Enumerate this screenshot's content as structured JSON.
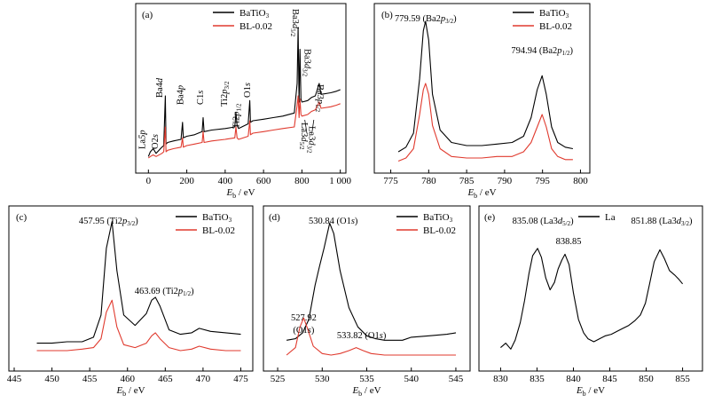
{
  "chart_data": [
    {
      "panel_label": "(a)",
      "type": "line",
      "xlabel_main": "E",
      "xlabel_sub": "b",
      "xlabel_unit": " / eV",
      "xlim": [
        -20,
        1020
      ],
      "ylim": [
        0,
        100
      ],
      "xticks": [
        0,
        200,
        400,
        600,
        800,
        1000
      ],
      "xtick_labels": [
        "0",
        "200",
        "400",
        "600",
        "800",
        "1 000"
      ],
      "legend_position": "top-right",
      "series": [
        {
          "name": "BaTiO3",
          "color": "#000000",
          "x": [
            0,
            10,
            25,
            40,
            70,
            80,
            88,
            92,
            100,
            130,
            170,
            178,
            182,
            200,
            240,
            280,
            285,
            290,
            330,
            400,
            450,
            456,
            462,
            470,
            520,
            528,
            532,
            545,
            600,
            650,
            700,
            760,
            775,
            780,
            785,
            790,
            795,
            800,
            830,
            850,
            870,
            890,
            900,
            950,
            980,
            1000
          ],
          "y": [
            5,
            8,
            10,
            7,
            11,
            12,
            44,
            13,
            14,
            15,
            16,
            27,
            17,
            18,
            19,
            21,
            30,
            21,
            22,
            23,
            24,
            33,
            25,
            23,
            26,
            41,
            27,
            28,
            29,
            30,
            31,
            33,
            52,
            88,
            40,
            74,
            42,
            40,
            41,
            43,
            44,
            52,
            45,
            46,
            47,
            48
          ]
        },
        {
          "name": "BL-0.02",
          "color": "#e03a2e",
          "x": [
            0,
            10,
            25,
            40,
            70,
            80,
            88,
            92,
            100,
            130,
            170,
            178,
            182,
            200,
            240,
            280,
            285,
            290,
            330,
            400,
            450,
            456,
            462,
            470,
            520,
            528,
            532,
            545,
            600,
            650,
            700,
            760,
            775,
            780,
            785,
            790,
            795,
            800,
            830,
            850,
            870,
            890,
            900,
            950,
            980,
            1000
          ],
          "y": [
            4,
            5,
            6,
            5,
            7,
            8,
            24,
            8,
            9,
            10,
            11,
            17,
            11,
            12,
            13,
            14,
            21,
            14,
            15,
            16,
            17,
            24,
            17,
            16,
            18,
            28,
            19,
            20,
            21,
            22,
            23,
            24,
            38,
            44,
            30,
            42,
            32,
            31,
            32,
            34,
            35,
            40,
            36,
            37,
            38,
            39
          ]
        }
      ],
      "annotations": [
        {
          "text": "La",
          "sub": "",
          "suffix": "5p",
          "x": 0
        },
        {
          "text": "O2",
          "sub": "",
          "suffix": "s",
          "x": 22
        },
        {
          "text": "Ba4",
          "sub": "",
          "suffix": "d",
          "x": 92
        },
        {
          "text": "Ba4",
          "sub": "",
          "suffix": "p",
          "x": 180
        },
        {
          "text": "C1",
          "sub": "",
          "suffix": "s",
          "x": 285
        },
        {
          "text": "Ti2",
          "sub": "3/2",
          "suffix": "p",
          "x": 456
        },
        {
          "text": "Ti2",
          "sub": "1/2",
          "suffix": "p",
          "x": 462
        },
        {
          "text": "O1",
          "sub": "",
          "suffix": "s",
          "x": 530
        },
        {
          "text": "Ba3",
          "sub": "5/2",
          "suffix": "d",
          "x": 780
        },
        {
          "text": "Ba3",
          "sub": "3/2",
          "suffix": "d",
          "x": 795
        },
        {
          "text": "Ba3",
          "sub": "1/2",
          "suffix": "p",
          "x": 890
        },
        {
          "text": "La3",
          "sub": "5/2",
          "suffix": "d",
          "x": 835
        },
        {
          "text": "La3",
          "sub": "3/2",
          "suffix": "d",
          "x": 852
        }
      ]
    },
    {
      "panel_label": "(b)",
      "type": "line",
      "xlabel_main": "E",
      "xlabel_sub": "b",
      "xlabel_unit": " / eV",
      "xlim": [
        774,
        801
      ],
      "ylim": [
        0,
        100
      ],
      "xticks": [
        775,
        780,
        785,
        790,
        795,
        800
      ],
      "xtick_labels": [
        "775",
        "780",
        "785",
        "790",
        "795",
        "800"
      ],
      "legend_position": "top-right",
      "series": [
        {
          "name": "BaTiO3",
          "color": "#000000",
          "x": [
            776,
            777,
            778,
            778.8,
            779.3,
            779.59,
            780,
            780.5,
            781.5,
            783,
            785,
            787,
            789,
            791,
            792.5,
            793.5,
            794.3,
            794.94,
            795.5,
            796.2,
            797,
            798,
            799
          ],
          "y": [
            8,
            11,
            20,
            55,
            86,
            92,
            80,
            45,
            22,
            14,
            12,
            12,
            13,
            14,
            18,
            30,
            48,
            57,
            45,
            24,
            14,
            11,
            10
          ]
        },
        {
          "name": "BL-0.02",
          "color": "#e03a2e",
          "x": [
            776,
            777,
            778,
            778.8,
            779.3,
            779.59,
            780,
            780.5,
            781.5,
            783,
            785,
            787,
            789,
            791,
            792.5,
            793.5,
            794.3,
            794.94,
            795.5,
            796.2,
            797,
            798,
            799
          ],
          "y": [
            2,
            4,
            10,
            32,
            48,
            52,
            45,
            25,
            10,
            5,
            4,
            4,
            5,
            5,
            8,
            14,
            24,
            32,
            24,
            10,
            5,
            3,
            3
          ]
        }
      ],
      "annotations": [
        {
          "text": "779.59 (Ba2",
          "sub": "3/2",
          "suffix": "p",
          "x": 779.59
        },
        {
          "text": "794.94 (Ba2",
          "sub": "1/2",
          "suffix": "p",
          "x": 794.94
        }
      ]
    },
    {
      "panel_label": "(c)",
      "type": "line",
      "xlabel_main": "E",
      "xlabel_sub": "b",
      "xlabel_unit": " / eV",
      "xlim": [
        445,
        476
      ],
      "ylim": [
        0,
        100
      ],
      "xticks": [
        445,
        450,
        455,
        460,
        465,
        470,
        475
      ],
      "xtick_labels": [
        "445",
        "450",
        "455",
        "460",
        "465",
        "470",
        "475"
      ],
      "legend_position": "top-right",
      "series": [
        {
          "name": "BaTiO3",
          "color": "#000000",
          "x": [
            448,
            450,
            452,
            454,
            455.5,
            456.5,
            457.2,
            457.95,
            458.6,
            459.5,
            461,
            462.5,
            463.2,
            463.69,
            464.3,
            465.5,
            467,
            468.5,
            469.5,
            471,
            473,
            475
          ],
          "y": [
            11,
            11,
            12,
            12,
            15,
            30,
            75,
            93,
            60,
            30,
            23,
            31,
            40,
            42,
            36,
            20,
            17,
            18,
            21,
            19,
            18,
            17
          ]
        },
        {
          "name": "BL-0.02",
          "color": "#e03a2e",
          "x": [
            448,
            450,
            452,
            454,
            455.5,
            456.5,
            457.2,
            457.95,
            458.6,
            459.5,
            461,
            462.5,
            463.2,
            463.69,
            464.3,
            465.5,
            467,
            468.5,
            469.5,
            471,
            473,
            475
          ],
          "y": [
            6,
            6,
            6,
            7,
            8,
            14,
            32,
            40,
            22,
            10,
            8,
            11,
            16,
            18,
            14,
            8,
            6,
            7,
            9,
            7,
            6,
            6
          ]
        }
      ],
      "annotations": [
        {
          "text": "457.95 (Ti2",
          "sub": "3/2",
          "suffix": "p",
          "x": 457.95
        },
        {
          "text": "463.69 (Ti2",
          "sub": "1/2",
          "suffix": "p",
          "x": 463.69
        }
      ]
    },
    {
      "panel_label": "(d)",
      "type": "line",
      "xlabel_main": "E",
      "xlabel_sub": "b",
      "xlabel_unit": " / eV",
      "xlim": [
        524,
        546
      ],
      "ylim": [
        0,
        100
      ],
      "xticks": [
        525,
        530,
        535,
        540,
        545
      ],
      "xtick_labels": [
        "525",
        "530",
        "535",
        "540",
        "545"
      ],
      "legend_position": "top-right",
      "series": [
        {
          "name": "BaTiO3",
          "color": "#000000",
          "x": [
            526,
            527,
            527.8,
            528.5,
            529.2,
            529.7,
            530.2,
            530.84,
            531.3,
            532,
            533,
            534,
            535,
            536,
            537,
            538,
            539,
            540,
            542,
            544,
            545
          ],
          "y": [
            13,
            14,
            18,
            27,
            50,
            63,
            75,
            92,
            85,
            60,
            35,
            22,
            16,
            14,
            13,
            13,
            13,
            15,
            16,
            17,
            18
          ]
        },
        {
          "name": "BL-0.02",
          "color": "#e03a2e",
          "x": [
            526,
            527,
            527.5,
            527.92,
            528.4,
            529,
            530,
            531,
            532,
            533,
            533.82,
            534.6,
            535.5,
            537,
            539,
            541,
            543,
            545
          ],
          "y": [
            3,
            8,
            22,
            28,
            20,
            9,
            4,
            3,
            4,
            6,
            8,
            6,
            4,
            3,
            3,
            3,
            3,
            3
          ]
        }
      ],
      "annotations": [
        {
          "text": "530.84 (O1",
          "sub": "",
          "suffix": "s)",
          "x": 530.84
        },
        {
          "text": "527.92",
          "sub": "",
          "suffix": "",
          "x": 527.92
        },
        {
          "text": "(O1",
          "sub": "",
          "suffix": "s)",
          "x": 527.92
        },
        {
          "text": "533.82 (O1",
          "sub": "",
          "suffix": "s)",
          "x": 533.82
        }
      ]
    },
    {
      "panel_label": "(e)",
      "type": "line",
      "xlabel_main": "E",
      "xlabel_sub": "b",
      "xlabel_unit": " / eV",
      "xlim": [
        828,
        857
      ],
      "ylim": [
        0,
        100
      ],
      "xticks": [
        830,
        835,
        840,
        845,
        850,
        855
      ],
      "xtick_labels": [
        "830",
        "835",
        "840",
        "845",
        "850",
        "855"
      ],
      "legend_position": "top-left",
      "series": [
        {
          "name": "La",
          "color": "#000000",
          "x": [
            830,
            830.7,
            831.4,
            832,
            832.7,
            833.3,
            833.9,
            834.4,
            835.08,
            835.6,
            836.2,
            836.8,
            837.4,
            837.9,
            838.4,
            838.85,
            839.4,
            840,
            840.7,
            841.4,
            842,
            842.8,
            843.6,
            844.4,
            845.2,
            846,
            846.8,
            847.6,
            848.4,
            849.2,
            849.9,
            850.5,
            851.1,
            851.88,
            852.5,
            853.2,
            853.9,
            854.5,
            855
          ],
          "y": [
            8,
            11,
            7,
            13,
            25,
            40,
            58,
            70,
            75,
            69,
            55,
            47,
            52,
            61,
            67,
            71,
            64,
            45,
            27,
            18,
            14,
            12,
            14,
            16,
            17,
            19,
            21,
            23,
            26,
            30,
            38,
            52,
            66,
            74,
            68,
            60,
            57,
            54,
            51
          ]
        }
      ],
      "annotations": [
        {
          "text": "835.08 (La3",
          "sub": "5/2",
          "suffix": "d",
          "x": 835.08
        },
        {
          "text": "838.85",
          "sub": "",
          "suffix": "",
          "x": 838.85
        },
        {
          "text": "851.88 (La3",
          "sub": "3/2",
          "suffix": "d",
          "x": 851.88
        }
      ]
    }
  ]
}
